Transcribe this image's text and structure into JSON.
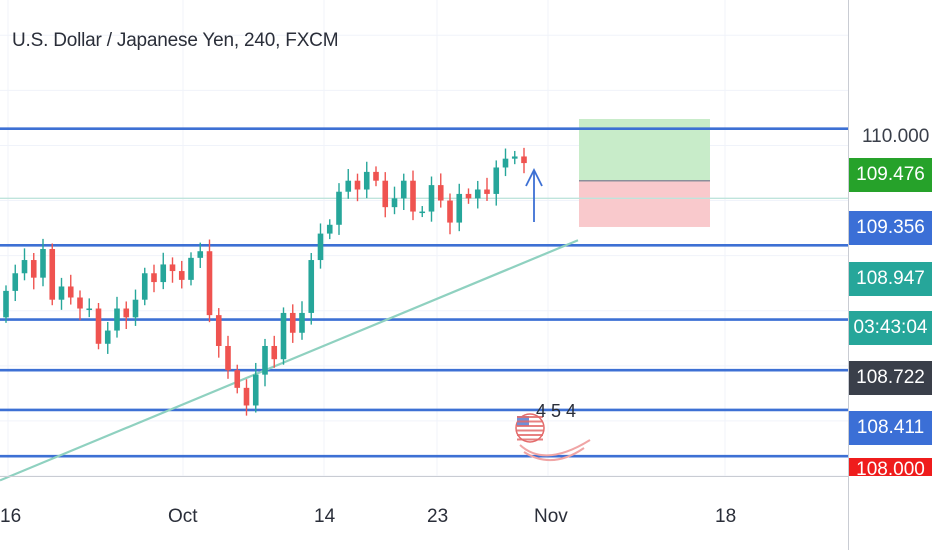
{
  "header": {
    "title": "U.S. Dollar / Japanese Yen, 240, FXCM"
  },
  "price_scale": {
    "top_tick": "110.000",
    "labels": [
      {
        "text": "109.476",
        "color": "#26a22a"
      },
      {
        "text": "109.356",
        "color": "#3b6fd6"
      },
      {
        "text": "108.947",
        "color": "#26a69a"
      },
      {
        "text": "03:43:04",
        "color": "#26a69a"
      },
      {
        "text": "108.722",
        "color": "#3a3f4a"
      },
      {
        "text": "108.411",
        "color": "#3b6fd6"
      },
      {
        "text": "108.000",
        "color": "#ef1c1c"
      }
    ]
  },
  "time_axis": {
    "ticks": [
      "16",
      "Oct",
      "14",
      "23",
      "Nov",
      "18"
    ]
  },
  "event_marker": {
    "icon": "us-flag-icon",
    "text": "4 5 4"
  },
  "colors": {
    "up": "#26a69a",
    "down": "#ef5350",
    "level_line": "#3d70d4",
    "trendline": "#8fd1c0",
    "profit_zone": "#c8ecc9",
    "loss_zone": "#f9c9cc"
  },
  "chart_data": {
    "type": "candlestick",
    "title": "U.S. Dollar / Japanese Yen, 240, FXCM",
    "xlabel": "",
    "ylabel": "",
    "x_ticks": [
      "16",
      "Oct",
      "14",
      "23",
      "Nov",
      "18"
    ],
    "ylim": [
      107.9,
      110.06
    ],
    "horizontal_levels": [
      109.476,
      109.16,
      108.947,
      108.61,
      108.38,
      108.2,
      107.99
    ],
    "trendline": {
      "from": 107.88,
      "to": 108.97
    },
    "long_position": {
      "entry": 109.24,
      "target": 109.52,
      "stop": 109.03
    },
    "series": [
      {
        "name": "",
        "closes": [
          108.74,
          108.82,
          108.88,
          108.8,
          108.93,
          108.7,
          108.76,
          108.71,
          108.66,
          108.66,
          108.5,
          108.56,
          108.66,
          108.62,
          108.7,
          108.82,
          108.78,
          108.86,
          108.83,
          108.79,
          108.89,
          108.92,
          108.63,
          108.49,
          108.38,
          108.3,
          108.22,
          108.36,
          108.49,
          108.43,
          108.64,
          108.55,
          108.64,
          108.88,
          109.0,
          109.04,
          109.19,
          109.24,
          109.2,
          109.28,
          109.24,
          109.12,
          109.16,
          109.24,
          109.1,
          109.1,
          109.22,
          109.15,
          109.05,
          109.18,
          109.16,
          109.2,
          109.18,
          109.3,
          109.34,
          109.35,
          109.32
        ]
      }
    ]
  }
}
